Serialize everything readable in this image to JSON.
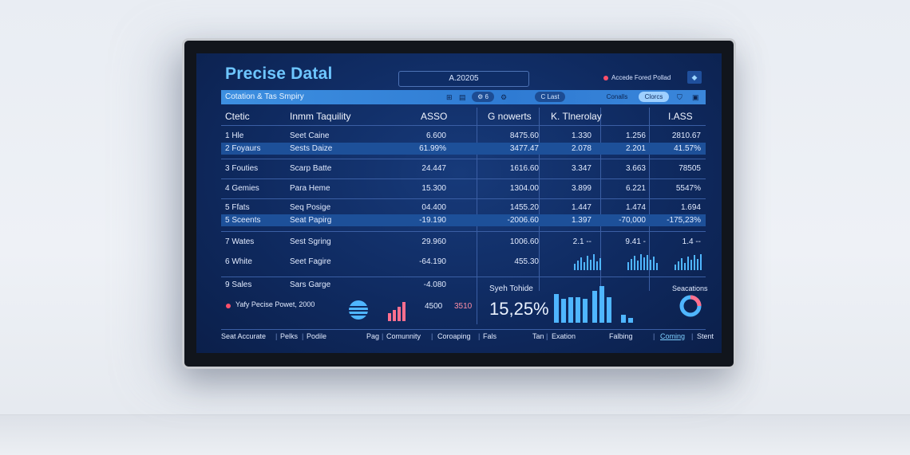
{
  "app": {
    "title": "Precise Datal",
    "center_label": "A.20205",
    "status_text": "Accede Fored Pollad"
  },
  "toolbar": {
    "label": "Cotation & Tas Smpiry",
    "pill_left": "C Last",
    "pill_mid": "Conalls",
    "pill_right": "Clorcs"
  },
  "table": {
    "headers": [
      "Ctetic",
      "Inmm Taquility",
      "ASSO",
      "G nowerts",
      "K. Tlnerolay",
      "I.ASS"
    ],
    "rows": [
      {
        "id": "1 Hle",
        "name": "Seet Caine",
        "a": "6.600",
        "b": "8475.60",
        "c": "1.330",
        "d": "1.256",
        "e": "2810.67",
        "hl": false
      },
      {
        "id": "2 Foyaurs",
        "name": "Sests Daize",
        "a": "61.99%",
        "b": "3477.47",
        "c": "2.078",
        "d": "2.201",
        "e": "41.57%",
        "hl": true
      },
      {
        "id": "3 Fouties",
        "name": "Scarp Batte",
        "a": "24.447",
        "b": "1616.60",
        "c": "3.347",
        "d": "3.663",
        "e": "78505",
        "hl": false
      },
      {
        "id": "4 Gemies",
        "name": "Para Heme",
        "a": "15.300",
        "b": "1304.00",
        "c": "3.899",
        "d": "6.221",
        "e": "5547%",
        "hl": false
      },
      {
        "id": "5 Ffats",
        "name": "Seq Posige",
        "a": "04.400",
        "b": "1455.20",
        "c": "1.447",
        "d": "1.474",
        "e": "1.694",
        "hl": false
      },
      {
        "id": "5 Sceents",
        "name": "Seat Papirg",
        "a": "-19.190",
        "b": "-2006.60",
        "c": "1.397",
        "d": "-70,000",
        "e": "-175,23%",
        "hl": true
      },
      {
        "id": "7 Wates",
        "name": "Sest Sgring",
        "a": "29.960",
        "b": "1006.60",
        "c": "2.1 --",
        "d": "9.41 -",
        "e": "1.4 --",
        "hl": false
      },
      {
        "id": "6 White",
        "name": "Seet Fagire",
        "a": "-64.190",
        "b": "455.30",
        "c": "",
        "d": "",
        "e": "",
        "hl": false
      }
    ],
    "last_row": {
      "id": "9 Sales",
      "name": "Sars Garge",
      "a": "-4.080"
    },
    "legend_label": "Yafy Pecise Powet, 2000",
    "small_val_1": "4500",
    "small_val_2": "3510",
    "summary_label": "Syeh Tohide",
    "summary_value": "15,25%",
    "sensations_label": "Seacations"
  },
  "footer": {
    "items": [
      "Seat Accurate",
      "Pelks",
      "Podile",
      "Pag",
      "Comunnity",
      "Coroaping",
      "Fals",
      "Tan",
      "Exation",
      "Falbing",
      "Coming",
      "Stent"
    ]
  },
  "colors": {
    "accent": "#6ec6ff",
    "bar": "#4fb6ff",
    "alert": "#ff4f6a",
    "pink_bar": "#ff6f8e"
  }
}
